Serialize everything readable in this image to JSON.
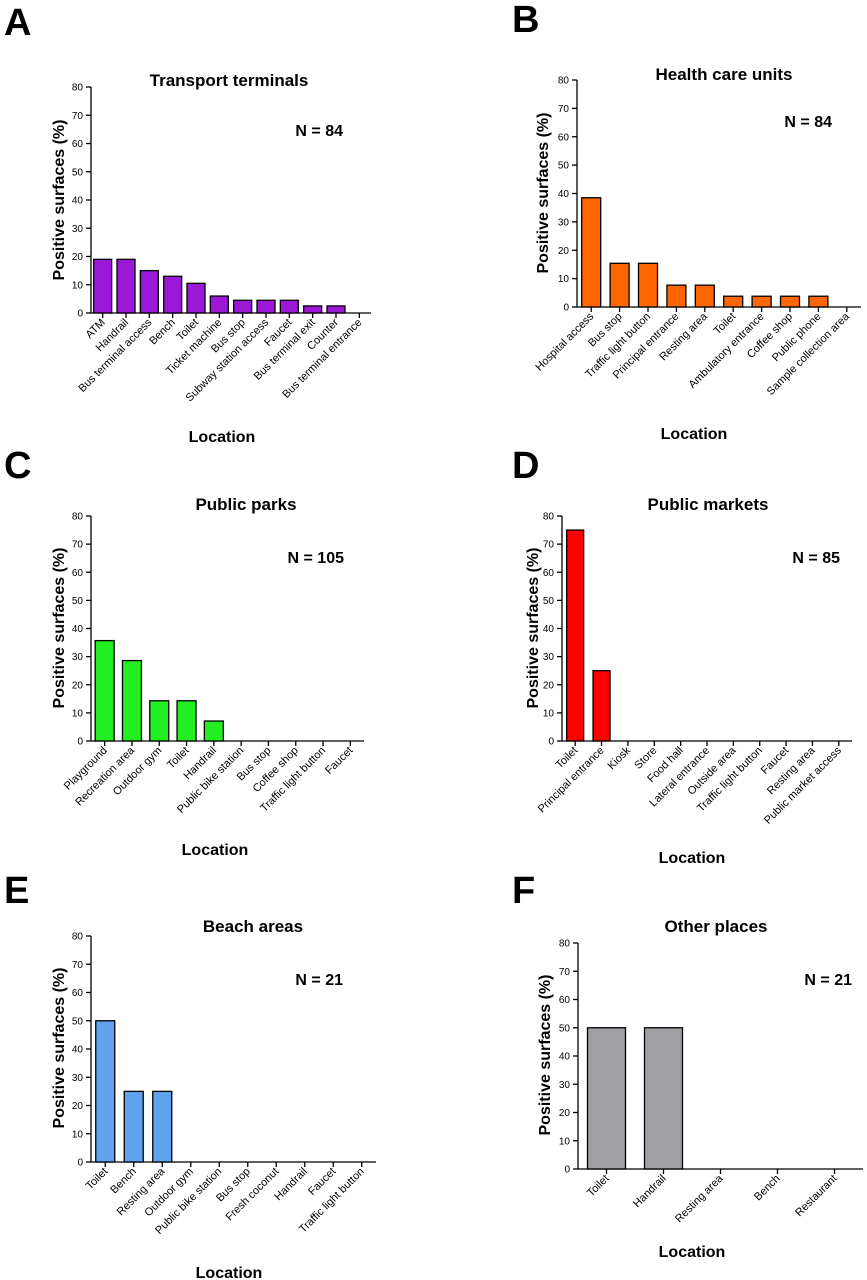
{
  "chart_data": [
    {
      "panel": "A",
      "type": "bar",
      "title": "Transport terminals",
      "n_label": "N = 84",
      "xlabel": "Location",
      "ylabel": "Positive surfaces (%)",
      "ylim": [
        0,
        80
      ],
      "yticks": [
        0,
        10,
        20,
        30,
        40,
        50,
        60,
        70,
        80
      ],
      "color": "#9b19d6",
      "categories": [
        "ATM",
        "Handrail",
        "Bus terminal access",
        "Bench",
        "Toilet",
        "Ticket machine",
        "Bus stop",
        "Subway station access",
        "Faucet",
        "Bus terminal exit",
        "Counter",
        "Bus terminal entrance"
      ],
      "values": [
        19,
        19,
        15,
        13,
        10.5,
        6,
        4.5,
        4.5,
        4.5,
        2.5,
        2.5,
        0
      ]
    },
    {
      "panel": "B",
      "type": "bar",
      "title": "Health care units",
      "n_label": "N = 84",
      "xlabel": "Location",
      "ylabel": "Positive surfaces (%)",
      "ylim": [
        0,
        80
      ],
      "yticks": [
        0,
        10,
        20,
        30,
        40,
        50,
        60,
        70,
        80
      ],
      "color": "#ff6600",
      "categories": [
        "Hospital access",
        "Bus stop",
        "Traffic light button",
        "Principal entrance",
        "Resting area",
        "Toilet",
        "Ambulatory entrance",
        "Coffee shop",
        "Public phone",
        "Sample collection area"
      ],
      "values": [
        38.5,
        15.4,
        15.4,
        7.7,
        7.7,
        3.8,
        3.8,
        3.8,
        3.8,
        0
      ]
    },
    {
      "panel": "C",
      "type": "bar",
      "title": "Public parks",
      "n_label": "N = 105",
      "xlabel": "Location",
      "ylabel": "Positive surfaces (%)",
      "ylim": [
        0,
        80
      ],
      "yticks": [
        0,
        10,
        20,
        30,
        40,
        50,
        60,
        70,
        80
      ],
      "color": "#22ee22",
      "categories": [
        "Playground",
        "Recreation area",
        "Outdoor gym",
        "Toilet",
        "Handrail",
        "Public bike station",
        "Bus stop",
        "Coffee shop",
        "Traffic light button",
        "Faucet"
      ],
      "values": [
        35.7,
        28.6,
        14.3,
        14.3,
        7.1,
        0,
        0,
        0,
        0,
        0
      ]
    },
    {
      "panel": "D",
      "type": "bar",
      "title": "Public markets",
      "n_label": "N = 85",
      "xlabel": "Location",
      "ylabel": "Positive surfaces (%)",
      "ylim": [
        0,
        80
      ],
      "yticks": [
        0,
        10,
        20,
        30,
        40,
        50,
        60,
        70,
        80
      ],
      "color": "#ff0000",
      "categories": [
        "Toilet",
        "Principal entrance",
        "Kiosk",
        "Store",
        "Food hall",
        "Lateral entrance",
        "Outside area",
        "Traffic light button",
        "Faucet",
        "Resting area",
        "Public market access"
      ],
      "values": [
        75,
        25,
        0,
        0,
        0,
        0,
        0,
        0,
        0,
        0,
        0
      ]
    },
    {
      "panel": "E",
      "type": "bar",
      "title": "Beach areas",
      "n_label": "N = 21",
      "xlabel": "Location",
      "ylabel": "Positive surfaces (%)",
      "ylim": [
        0,
        80
      ],
      "yticks": [
        0,
        10,
        20,
        30,
        40,
        50,
        60,
        70,
        80
      ],
      "color": "#5fa3ee",
      "categories": [
        "Toilet",
        "Bench",
        "Resting area",
        "Outdoor gym",
        "Public bike station",
        "Bus stop",
        "Fresh coconut",
        "Handrail",
        "Faucet",
        "Traffic light button"
      ],
      "values": [
        50,
        25,
        25,
        0,
        0,
        0,
        0,
        0,
        0,
        0
      ]
    },
    {
      "panel": "F",
      "type": "bar",
      "title": "Other places",
      "n_label": "N = 21",
      "xlabel": "Location",
      "ylabel": "Positive surfaces (%)",
      "ylim": [
        0,
        80
      ],
      "yticks": [
        0,
        10,
        20,
        30,
        40,
        50,
        60,
        70,
        80
      ],
      "color": "#a0a0a4",
      "categories": [
        "Toilet",
        "Handrail",
        "Resting area",
        "Bench",
        "Restaurant"
      ],
      "values": [
        50,
        50,
        0,
        0,
        0
      ]
    }
  ]
}
